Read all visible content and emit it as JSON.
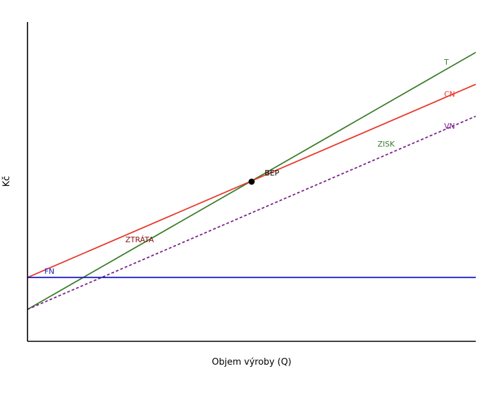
{
  "chart_data": {
    "type": "line",
    "title": "",
    "xlabel": "Objem výroby (Q)",
    "ylabel": "Kč",
    "xlim": [
      0,
      100
    ],
    "ylim": [
      0,
      100
    ],
    "grid": false,
    "series": [
      {
        "name": "T",
        "color": "#3a7d2a",
        "dash": false,
        "x": [
          0,
          100
        ],
        "y": [
          10,
          90.5
        ]
      },
      {
        "name": "CN",
        "color": "#e8382a",
        "dash": false,
        "x": [
          0,
          100
        ],
        "y": [
          20,
          80.5
        ]
      },
      {
        "name": "VN",
        "color": "#7b1f8c",
        "dash": true,
        "x": [
          0,
          100
        ],
        "y": [
          10,
          70.5
        ]
      },
      {
        "name": "FN",
        "color": "#1d1dc4",
        "dash": false,
        "x": [
          0,
          100
        ],
        "y": [
          20,
          20
        ]
      }
    ],
    "annotations": [
      {
        "text": "BEP",
        "x": 50,
        "y": 50,
        "marker": true,
        "color": "#000000"
      },
      {
        "text": "ZTRÁTA",
        "x": 25,
        "y": 31,
        "color": "#8b1010"
      },
      {
        "text": "ZISK",
        "x": 80,
        "y": 61,
        "color": "#3a7d2a"
      }
    ]
  }
}
